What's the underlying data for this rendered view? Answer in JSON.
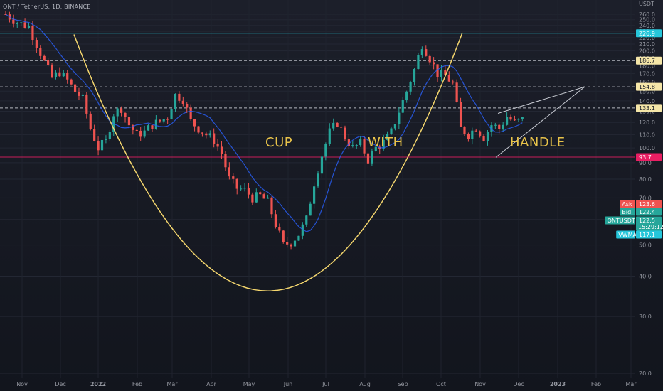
{
  "header": {
    "symbol_line": "QNT / TetherUS, 1D, BINANCE"
  },
  "chart_data": {
    "type": "candlestick",
    "title": "QNT / TetherUS, 1D, BINANCE",
    "ylabel": "USDT",
    "ylim": [
      18,
      270
    ],
    "y_scale": "log",
    "y_ticks": [
      20,
      30,
      40,
      50,
      60,
      70,
      80,
      90,
      100,
      110,
      120,
      130,
      140,
      150,
      160,
      170,
      180,
      190,
      200,
      210,
      220,
      230,
      240,
      250,
      260
    ],
    "x_tick_labels": [
      "Nov",
      "Dec",
      "2022",
      "Feb",
      "Mar",
      "Apr",
      "May",
      "Jun",
      "Jul",
      "Aug",
      "Sep",
      "Oct",
      "Nov",
      "Dec",
      "2023",
      "Feb",
      "Mar"
    ],
    "x_tick_bold": [
      "2022",
      "2023"
    ],
    "grid": true,
    "colors": {
      "up": "#26a69a",
      "down": "#ef5350",
      "vwma": "#2962ff",
      "cup": "#f5d76e",
      "annotation": "#e8c34a",
      "background": "#161a25"
    },
    "price_path": [
      [
        0,
        260
      ],
      [
        3,
        245
      ],
      [
        6,
        238
      ],
      [
        8,
        210
      ],
      [
        10,
        185
      ],
      [
        12,
        165
      ],
      [
        14,
        172
      ],
      [
        16,
        162
      ],
      [
        18,
        150
      ],
      [
        20,
        142
      ],
      [
        22,
        115
      ],
      [
        24,
        100
      ],
      [
        26,
        105
      ],
      [
        28,
        128
      ],
      [
        30,
        133
      ],
      [
        32,
        118
      ],
      [
        34,
        110
      ],
      [
        36,
        112
      ],
      [
        38,
        118
      ],
      [
        40,
        121
      ],
      [
        42,
        125
      ],
      [
        44,
        146
      ],
      [
        46,
        142
      ],
      [
        48,
        121
      ],
      [
        50,
        115
      ],
      [
        52,
        110
      ],
      [
        54,
        106
      ],
      [
        56,
        96
      ],
      [
        58,
        80
      ],
      [
        60,
        75
      ],
      [
        62,
        74
      ],
      [
        64,
        70
      ],
      [
        66,
        71
      ],
      [
        68,
        68
      ],
      [
        70,
        58
      ],
      [
        72,
        50
      ],
      [
        74,
        51
      ],
      [
        76,
        54
      ],
      [
        78,
        60
      ],
      [
        80,
        78
      ],
      [
        82,
        95
      ],
      [
        84,
        112
      ],
      [
        86,
        120
      ],
      [
        88,
        108
      ],
      [
        90,
        100
      ],
      [
        92,
        103
      ],
      [
        94,
        92
      ],
      [
        96,
        100
      ],
      [
        98,
        104
      ],
      [
        100,
        112
      ],
      [
        102,
        130
      ],
      [
        104,
        150
      ],
      [
        106,
        175
      ],
      [
        108,
        210
      ],
      [
        110,
        190
      ],
      [
        112,
        170
      ],
      [
        114,
        168
      ],
      [
        116,
        158
      ],
      [
        118,
        115
      ],
      [
        120,
        110
      ],
      [
        122,
        116
      ],
      [
        124,
        108
      ],
      [
        126,
        118
      ],
      [
        128,
        115
      ],
      [
        130,
        125
      ],
      [
        132,
        120
      ],
      [
        134,
        122.5
      ]
    ],
    "horizontal_levels": [
      {
        "value": 226.9,
        "label": "226.9",
        "color": "#26c6da",
        "style": "solid"
      },
      {
        "value": 186.7,
        "label": "186.7",
        "color": "#d1d4dc",
        "style": "dashed"
      },
      {
        "value": 154.8,
        "label": "154.8",
        "color": "#d1d4dc",
        "style": "dashed"
      },
      {
        "value": 133.1,
        "label": "133.1",
        "color": "#d1d4dc",
        "style": "dashed"
      },
      {
        "value": 93.7,
        "label": "93.7",
        "color": "#e91e63",
        "style": "solid"
      }
    ],
    "price_tags": [
      {
        "key": "Ask",
        "value": "123.6",
        "bg": "#ef5350",
        "fg": "#ffffff"
      },
      {
        "key": "Bid",
        "value": "122.4",
        "bg": "#26a69a",
        "fg": "#ffffff"
      },
      {
        "key": "QNTUSDT",
        "value": "122.5",
        "bg": "#26a69a",
        "fg": "#ffffff",
        "sub": "15:29:12"
      },
      {
        "key": "VWMA",
        "value": "117.1",
        "bg": "#26c6da",
        "fg": "#ffffff"
      }
    ],
    "annotations": {
      "cup": "CUP",
      "with": "WITH",
      "handle": "HANDLE"
    },
    "cup_curve": {
      "left_rim": 225,
      "bottom": 36,
      "right_rim": 228
    },
    "triangle": {
      "upper_from": 128,
      "lower_from": 93.5,
      "apex": 154.8
    }
  }
}
